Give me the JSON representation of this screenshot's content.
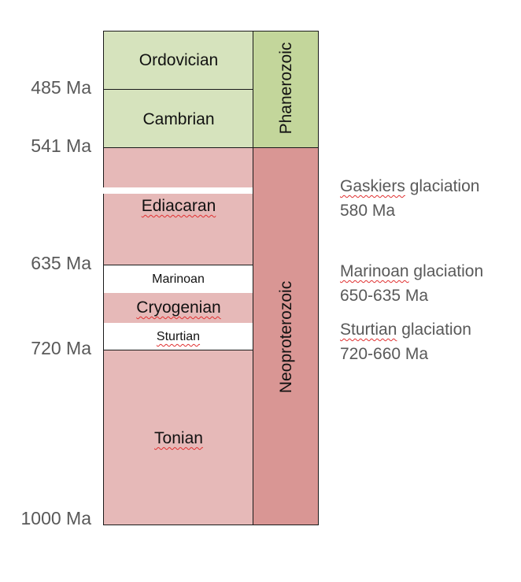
{
  "colors": {
    "phanerozoic_fill": "#d6e3bd",
    "phanerozoic_era_fill": "#c3d69b",
    "neoproterozoic_fill": "#e6b9b8",
    "neoproterozoic_era_fill": "#d99694",
    "border": "#1a1a1a",
    "text_gray": "#595959"
  },
  "ticks": [
    "485 Ma",
    "541 Ma",
    "635 Ma",
    "720 Ma",
    "1000 Ma"
  ],
  "periods": {
    "ordovician": "Ordovician",
    "cambrian": "Cambrian",
    "ediacaran": "Ediacaran",
    "cryogenian": "Cryogenian",
    "tonian": "Tonian"
  },
  "glaciation_bands": {
    "marinoan": "Marinoan",
    "sturtian": "Sturtian"
  },
  "eras": {
    "phanerozoic": "Phanerozoic",
    "neoproterozoic": "Neoproterozoic"
  },
  "notes": {
    "gaskiers": {
      "name_word": "Gaskiers",
      "rest": " glaciation",
      "age": "580 Ma"
    },
    "marinoan": {
      "name_word": "Marinoan",
      "rest": " glaciation",
      "age": "650-635 Ma"
    },
    "sturtian": {
      "name_word": "Sturtian",
      "rest": " glaciation",
      "age": "720-660 Ma"
    }
  }
}
